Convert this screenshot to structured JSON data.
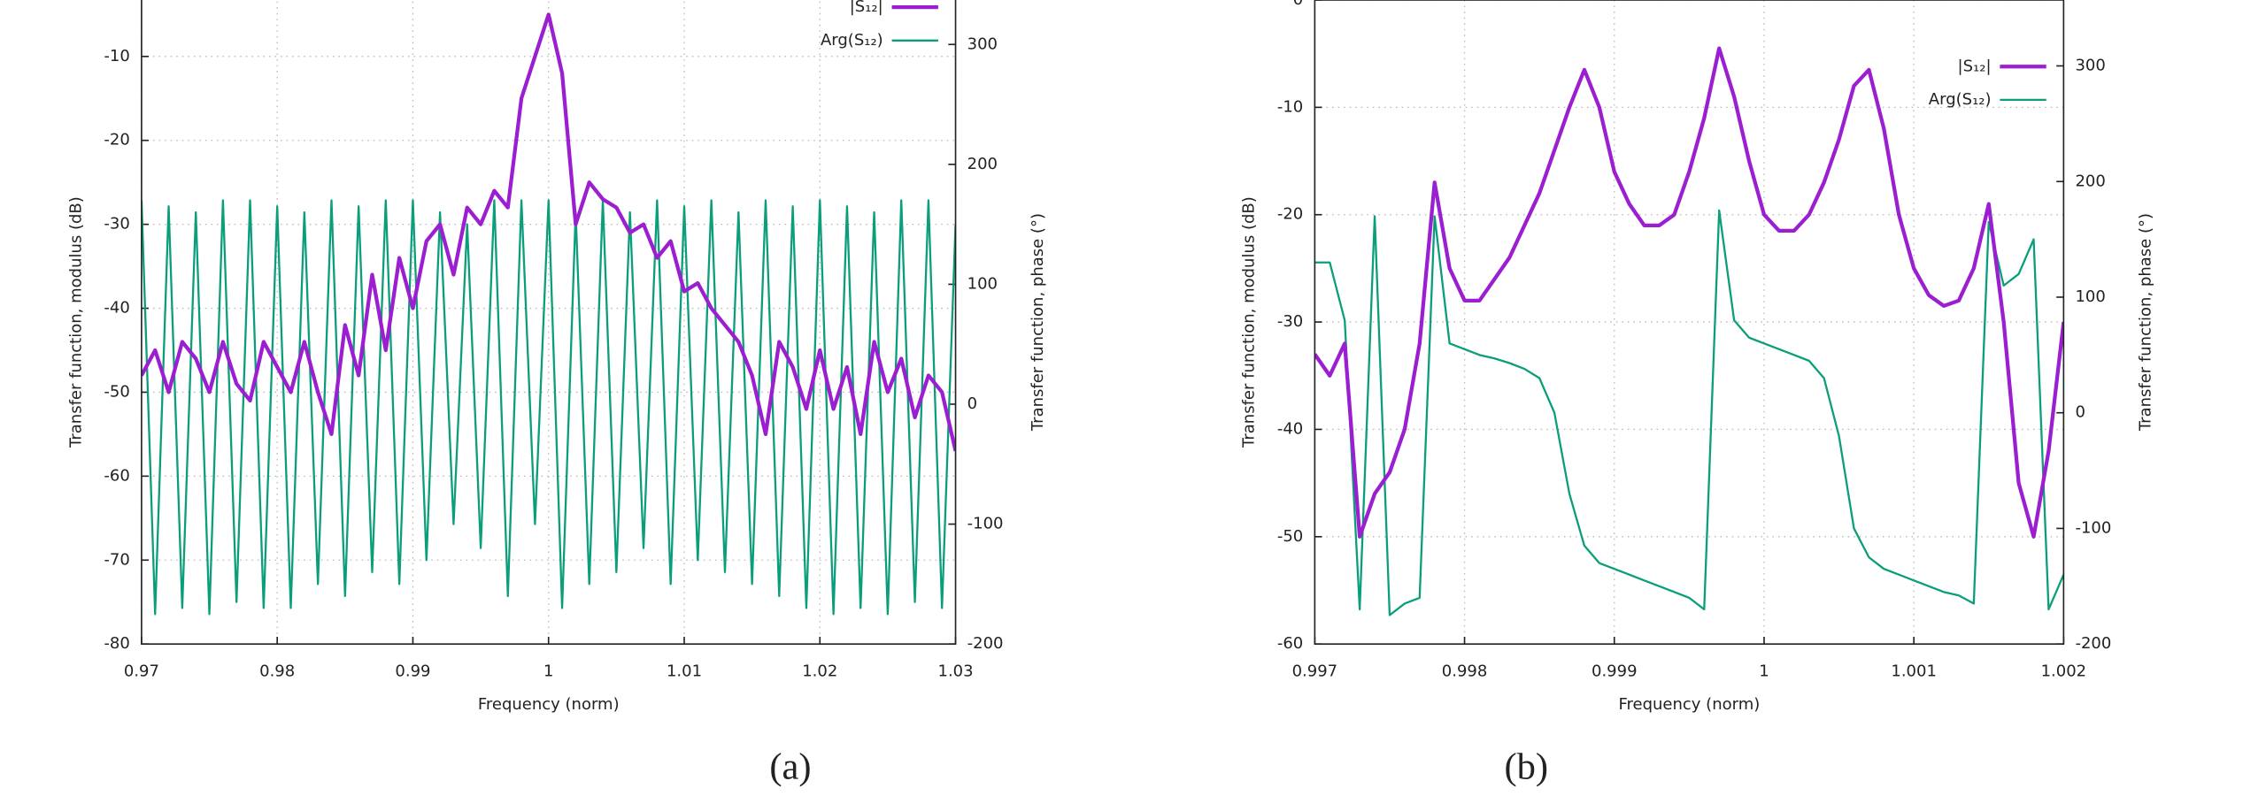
{
  "chart_data": [
    {
      "type": "line",
      "caption": "(a)",
      "xlabel": "Frequency (norm)",
      "ylabel": "Transfer function, modulus (dB)",
      "y2label": "Transfer function, phase (°)",
      "xlim": [
        0.97,
        1.03
      ],
      "xticks": [
        0.97,
        0.98,
        0.99,
        1,
        1.01,
        1.02,
        1.03
      ],
      "ylim": [
        -80,
        0
      ],
      "yticks": [
        -80,
        -70,
        -60,
        -50,
        -40,
        -30,
        -20,
        -10
      ],
      "y2lim": [
        -200,
        360
      ],
      "y2ticks": [
        -200,
        -100,
        0,
        100,
        200,
        300
      ],
      "grid": true,
      "legend": "top-right",
      "x": [
        0.97,
        0.971,
        0.972,
        0.973,
        0.974,
        0.975,
        0.976,
        0.977,
        0.978,
        0.979,
        0.98,
        0.981,
        0.982,
        0.983,
        0.984,
        0.985,
        0.986,
        0.987,
        0.988,
        0.989,
        0.99,
        0.991,
        0.992,
        0.993,
        0.994,
        0.995,
        0.996,
        0.997,
        0.998,
        0.999,
        1.0,
        1.001,
        1.002,
        1.003,
        1.004,
        1.005,
        1.006,
        1.007,
        1.008,
        1.009,
        1.01,
        1.011,
        1.012,
        1.013,
        1.014,
        1.015,
        1.016,
        1.017,
        1.018,
        1.019,
        1.02,
        1.021,
        1.022,
        1.023,
        1.024,
        1.025,
        1.026,
        1.027,
        1.028,
        1.029,
        1.03
      ],
      "series": [
        {
          "name": "|S₁₂|",
          "color": "#9b1fd1",
          "width": 2.6,
          "values": [
            -48,
            -45,
            -50,
            -44,
            -46,
            -50,
            -44,
            -49,
            -51,
            -44,
            -47,
            -50,
            -44,
            -50,
            -55,
            -42,
            -48,
            -36,
            -45,
            -34,
            -40,
            -32,
            -30,
            -36,
            -28,
            -30,
            -26,
            -28,
            -15,
            -10,
            -5,
            -12,
            -30,
            -25,
            -27,
            -28,
            -31,
            -30,
            -34,
            -32,
            -38,
            -37,
            -40,
            -42,
            -44,
            -48,
            -55,
            -44,
            -47,
            -52,
            -45,
            -52,
            -47,
            -55,
            -44,
            -50,
            -46,
            -53,
            -48,
            -50,
            -57
          ]
        },
        {
          "name": "Arg(S₁₂)",
          "color": "#0a9e7a",
          "width": 1.4,
          "axis": "y2",
          "values": [
            170,
            -175,
            165,
            -170,
            160,
            -175,
            170,
            -165,
            170,
            -170,
            165,
            -170,
            160,
            -150,
            170,
            -160,
            165,
            -140,
            170,
            -150,
            170,
            -130,
            160,
            -100,
            150,
            -120,
            170,
            -160,
            170,
            -100,
            170,
            -170,
            160,
            -150,
            170,
            -140,
            160,
            -120,
            170,
            -150,
            165,
            -130,
            170,
            -140,
            160,
            -150,
            170,
            -160,
            165,
            -170,
            170,
            -175,
            165,
            -170,
            160,
            -175,
            170,
            -165,
            170,
            -170,
            150
          ]
        }
      ]
    },
    {
      "type": "line",
      "caption": "(b)",
      "xlabel": "Frequency (norm)",
      "ylabel": "Transfer function, modulus (dB)",
      "y2label": "Transfer function, phase (°)",
      "xlim": [
        0.997,
        1.002
      ],
      "xticks": [
        0.997,
        0.998,
        0.999,
        1,
        1.001,
        1.002
      ],
      "ylim": [
        -60,
        0
      ],
      "yticks": [
        -60,
        -50,
        -40,
        -30,
        -20,
        -10,
        0
      ],
      "y2lim": [
        -200,
        357
      ],
      "y2ticks": [
        -200,
        -100,
        0,
        100,
        200,
        300
      ],
      "grid": true,
      "legend": "top-right",
      "x": [
        0.997,
        0.9971,
        0.9972,
        0.9973,
        0.9974,
        0.9975,
        0.9976,
        0.9977,
        0.9978,
        0.9979,
        0.998,
        0.9981,
        0.9982,
        0.9983,
        0.9984,
        0.9985,
        0.9986,
        0.9987,
        0.9988,
        0.9989,
        0.999,
        0.9991,
        0.9992,
        0.9993,
        0.9994,
        0.9995,
        0.9996,
        0.9997,
        0.9998,
        0.9999,
        1.0,
        1.0001,
        1.0002,
        1.0003,
        1.0004,
        1.0005,
        1.0006,
        1.0007,
        1.0008,
        1.0009,
        1.001,
        1.0011,
        1.0012,
        1.0013,
        1.0014,
        1.0015,
        1.0016,
        1.0017,
        1.0018,
        1.0019,
        1.002
      ],
      "series": [
        {
          "name": "|S₁₂|",
          "color": "#9b1fd1",
          "width": 2.6,
          "values": [
            -33,
            -35,
            -32,
            -50,
            -46,
            -44,
            -40,
            -32,
            -17,
            -25,
            -28,
            -28,
            -26,
            -24,
            -21,
            -18,
            -14,
            -10,
            -6.5,
            -10,
            -16,
            -19,
            -21,
            -21,
            -20,
            -16,
            -11,
            -4.5,
            -9,
            -15,
            -20,
            -21.5,
            -21.5,
            -20,
            -17,
            -13,
            -8,
            -6.5,
            -12,
            -20,
            -25,
            -27.5,
            -28.5,
            -28,
            -25,
            -19,
            -30,
            -45,
            -50,
            -42,
            -30
          ]
        },
        {
          "name": "Arg(S₁₂)",
          "color": "#0a9e7a",
          "width": 1.4,
          "axis": "y2",
          "values": [
            130,
            130,
            80,
            -170,
            170,
            -175,
            -165,
            -160,
            170,
            60,
            55,
            50,
            47,
            43,
            38,
            30,
            0,
            -70,
            -115,
            -130,
            -135,
            -140,
            -145,
            -150,
            -155,
            -160,
            -170,
            175,
            80,
            65,
            60,
            55,
            50,
            45,
            30,
            -20,
            -100,
            -125,
            -135,
            -140,
            -145,
            -150,
            -155,
            -158,
            -165,
            165,
            110,
            120,
            150,
            -170,
            -140
          ]
        }
      ]
    }
  ]
}
